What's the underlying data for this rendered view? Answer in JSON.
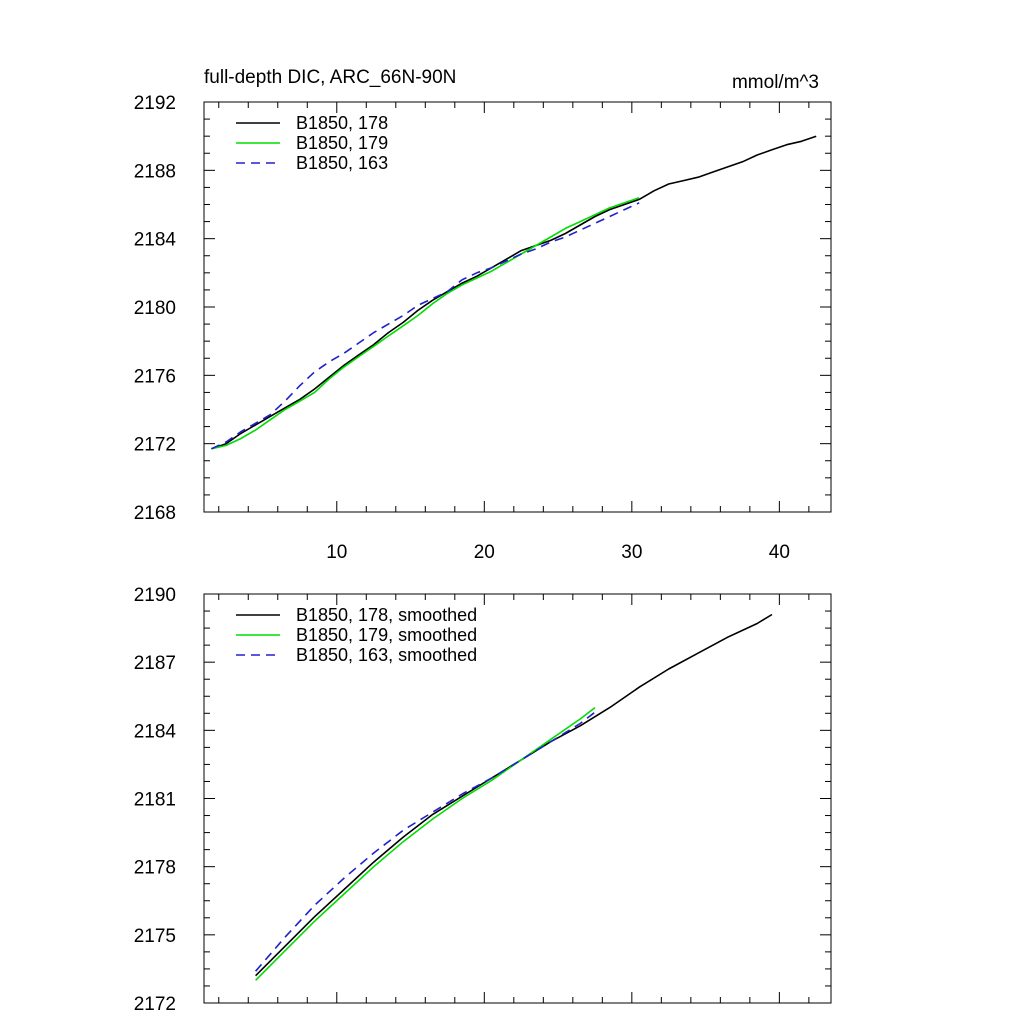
{
  "chart_data": [
    {
      "type": "line",
      "title": "full-depth DIC, ARC_66N-90N",
      "units": "mmol/m^3",
      "xlim": [
        1,
        43.5
      ],
      "ylim": [
        2168,
        2192
      ],
      "xticks": [
        10,
        20,
        30,
        40
      ],
      "xticklabels": [
        "10",
        "20",
        "30",
        "40"
      ],
      "yticks": [
        2168,
        2172,
        2176,
        2180,
        2184,
        2188,
        2192
      ],
      "yticklabels": [
        "2168",
        "2172",
        "2176",
        "2180",
        "2184",
        "2188",
        "2192"
      ],
      "legend_position": "top-left",
      "series": [
        {
          "name": "B1850, 178",
          "color": "#000000",
          "dash": "solid",
          "x": [
            1.5,
            2.5,
            3.5,
            4.5,
            5.5,
            6.5,
            7.5,
            8.5,
            9.5,
            10.5,
            11.5,
            12.5,
            13.5,
            14.5,
            15.5,
            16.5,
            17.5,
            18.5,
            19.5,
            20.5,
            21.5,
            22.5,
            23.5,
            24.5,
            25.5,
            26.5,
            27.5,
            28.5,
            29.5,
            30.5,
            31.5,
            32.5,
            33.5,
            34.5,
            35.5,
            36.5,
            37.5,
            38.5,
            39.5,
            40.5,
            41.5,
            42.5
          ],
          "y": [
            2171.7,
            2172.0,
            2172.6,
            2173.1,
            2173.6,
            2174.1,
            2174.6,
            2175.2,
            2175.9,
            2176.6,
            2177.2,
            2177.8,
            2178.5,
            2179.1,
            2179.8,
            2180.4,
            2180.9,
            2181.4,
            2181.8,
            2182.3,
            2182.8,
            2183.3,
            2183.6,
            2183.9,
            2184.3,
            2184.8,
            2185.3,
            2185.7,
            2186.0,
            2186.3,
            2186.8,
            2187.2,
            2187.4,
            2187.6,
            2187.9,
            2188.2,
            2188.5,
            2188.9,
            2189.2,
            2189.5,
            2189.7,
            2190.0
          ]
        },
        {
          "name": "B1850, 179",
          "color": "#00dd00",
          "dash": "solid",
          "x": [
            1.5,
            2.5,
            3.5,
            4.5,
            5.5,
            6.5,
            7.5,
            8.5,
            9.5,
            10.5,
            11.5,
            12.5,
            13.5,
            14.5,
            15.5,
            16.5,
            17.5,
            18.5,
            19.5,
            20.5,
            21.5,
            22.5,
            23.5,
            24.5,
            25.5,
            26.5,
            27.5,
            28.5,
            29.5,
            30.5
          ],
          "y": [
            2171.7,
            2171.9,
            2172.3,
            2172.8,
            2173.4,
            2174.0,
            2174.5,
            2175.0,
            2175.8,
            2176.5,
            2177.1,
            2177.7,
            2178.3,
            2178.9,
            2179.5,
            2180.2,
            2180.8,
            2181.3,
            2181.7,
            2182.1,
            2182.6,
            2183.1,
            2183.6,
            2184.1,
            2184.6,
            2185.0,
            2185.4,
            2185.8,
            2186.1,
            2186.4
          ]
        },
        {
          "name": "B1850, 163",
          "color": "#2020cc",
          "dash": "dashed",
          "x": [
            1.5,
            2.5,
            3.5,
            4.5,
            5.5,
            6.5,
            7.5,
            8.5,
            9.5,
            10.5,
            11.5,
            12.5,
            13.5,
            14.5,
            15.5,
            16.5,
            17.5,
            18.5,
            19.5,
            20.5,
            21.5,
            22.5,
            23.5,
            24.5,
            25.5,
            26.5,
            27.5,
            28.5,
            29.5,
            30.5
          ],
          "y": [
            2171.7,
            2172.1,
            2172.7,
            2173.2,
            2173.7,
            2174.5,
            2175.4,
            2176.2,
            2176.8,
            2177.3,
            2177.9,
            2178.5,
            2179.0,
            2179.5,
            2180.1,
            2180.5,
            2180.9,
            2181.6,
            2182.0,
            2182.3,
            2182.7,
            2183.1,
            2183.4,
            2183.8,
            2184.1,
            2184.5,
            2184.9,
            2185.3,
            2185.7,
            2186.1
          ]
        }
      ]
    },
    {
      "type": "line",
      "title": "",
      "xlim": [
        1,
        43.5
      ],
      "ylim": [
        2172,
        2190
      ],
      "xticks": [
        10,
        20,
        30,
        40
      ],
      "xticklabels": [],
      "yticks": [
        2172,
        2175,
        2178,
        2181,
        2184,
        2187,
        2190
      ],
      "yticklabels": [
        "2172",
        "2175",
        "2178",
        "2181",
        "2184",
        "2187",
        "2190"
      ],
      "legend_position": "top-left",
      "series": [
        {
          "name": "B1850, 178, smoothed",
          "color": "#000000",
          "dash": "solid",
          "x": [
            4.5,
            6.5,
            8.5,
            10.5,
            12.5,
            14.5,
            16.5,
            18.5,
            20.5,
            22.5,
            24.5,
            26.5,
            28.5,
            30.5,
            32.5,
            34.5,
            36.5,
            38.5,
            39.5
          ],
          "y": [
            2173.2,
            2174.5,
            2175.8,
            2177.0,
            2178.2,
            2179.3,
            2180.3,
            2181.1,
            2181.9,
            2182.7,
            2183.5,
            2184.2,
            2185.0,
            2185.9,
            2186.7,
            2187.4,
            2188.1,
            2188.7,
            2189.1
          ]
        },
        {
          "name": "B1850, 179, smoothed",
          "color": "#00dd00",
          "dash": "solid",
          "x": [
            4.5,
            6.5,
            8.5,
            10.5,
            12.5,
            14.5,
            16.5,
            18.5,
            20.5,
            22.5,
            24.5,
            26.5,
            27.5
          ],
          "y": [
            2173.0,
            2174.3,
            2175.6,
            2176.8,
            2178.0,
            2179.1,
            2180.1,
            2181.0,
            2181.8,
            2182.7,
            2183.6,
            2184.5,
            2185.0
          ]
        },
        {
          "name": "B1850, 163, smoothed",
          "color": "#2020cc",
          "dash": "dashed",
          "x": [
            4.5,
            6.5,
            8.5,
            10.5,
            12.5,
            14.5,
            16.5,
            18.5,
            20.5,
            22.5,
            24.5,
            26.5,
            27.5
          ],
          "y": [
            2173.4,
            2174.9,
            2176.3,
            2177.5,
            2178.6,
            2179.6,
            2180.4,
            2181.2,
            2181.9,
            2182.7,
            2183.5,
            2184.3,
            2184.8
          ]
        }
      ]
    }
  ]
}
